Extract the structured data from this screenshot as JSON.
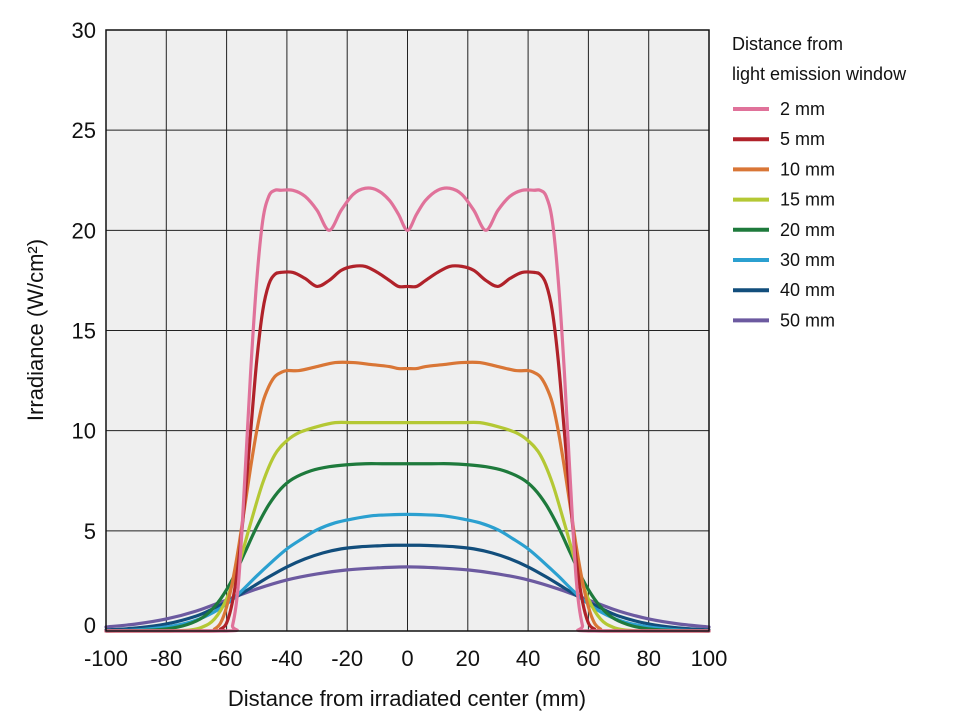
{
  "chart_data": {
    "type": "line",
    "xlabel": "Distance from irradiated center (mm)",
    "ylabel": "Irradiance (W/cm²)",
    "xlim": [
      -100,
      100
    ],
    "ylim": [
      0,
      30
    ],
    "x_ticks": [
      "-100",
      "-80",
      "-60",
      "-40",
      "-20",
      "0",
      "20",
      "40",
      "60",
      "80",
      "100"
    ],
    "y_ticks": [
      "0",
      "5",
      "10",
      "15",
      "20",
      "25",
      "30"
    ],
    "grid": true,
    "legend": {
      "title_line1": "Distance from",
      "title_line2": "light emission window",
      "placement": "right"
    },
    "series": [
      {
        "name": "2 mm",
        "color": "#e0729a",
        "x": [
          -100,
          -60,
          -58,
          -56,
          -54,
          -52,
          -50,
          -48,
          -46,
          -44,
          -42,
          -38,
          -34,
          -30,
          -26,
          -22,
          -18,
          -14,
          -10,
          -6,
          -3,
          0,
          3,
          6,
          10,
          14,
          18,
          22,
          26,
          30,
          34,
          38,
          42,
          44,
          46,
          48,
          50,
          52,
          54,
          56,
          58,
          60,
          100
        ],
        "y": [
          0,
          0,
          0.3,
          2.5,
          7.5,
          13,
          17.5,
          20.5,
          21.7,
          22.0,
          22.0,
          22.0,
          21.7,
          21.0,
          20.0,
          21.0,
          21.8,
          22.1,
          22.0,
          21.5,
          20.8,
          20.0,
          20.8,
          21.5,
          22.0,
          22.1,
          21.8,
          21.0,
          20.0,
          21.0,
          21.7,
          22.0,
          22.0,
          22.0,
          21.7,
          20.5,
          17.5,
          13,
          7.5,
          2.5,
          0.3,
          0,
          0
        ]
      },
      {
        "name": "5 mm",
        "color": "#b0222a",
        "x": [
          -100,
          -64,
          -62,
          -60,
          -58,
          -56,
          -54,
          -52,
          -50,
          -48,
          -46,
          -44,
          -42,
          -38,
          -34,
          -30,
          -26,
          -22,
          -18,
          -14,
          -10,
          -6,
          -3,
          0,
          3,
          6,
          10,
          14,
          18,
          22,
          26,
          30,
          34,
          38,
          42,
          44,
          46,
          48,
          50,
          52,
          54,
          56,
          58,
          60,
          62,
          64,
          100
        ],
        "y": [
          0,
          0,
          0.1,
          0.4,
          1.5,
          3.5,
          6.5,
          10,
          13.5,
          16,
          17.3,
          17.8,
          17.9,
          17.9,
          17.6,
          17.2,
          17.5,
          18.0,
          18.2,
          18.2,
          17.9,
          17.5,
          17.2,
          17.2,
          17.2,
          17.5,
          17.9,
          18.2,
          18.2,
          18.0,
          17.5,
          17.2,
          17.6,
          17.9,
          17.9,
          17.8,
          17.3,
          16,
          13.5,
          10,
          6.5,
          3.5,
          1.5,
          0.4,
          0.1,
          0,
          0
        ]
      },
      {
        "name": "10 mm",
        "color": "#d97636",
        "x": [
          -100,
          -66,
          -64,
          -62,
          -60,
          -58,
          -56,
          -54,
          -52,
          -50,
          -48,
          -46,
          -44,
          -42,
          -40,
          -36,
          -30,
          -24,
          -18,
          -12,
          -6,
          -3,
          0,
          3,
          6,
          12,
          18,
          24,
          30,
          36,
          40,
          42,
          44,
          46,
          48,
          50,
          52,
          54,
          56,
          58,
          60,
          62,
          64,
          66,
          100
        ],
        "y": [
          0,
          0,
          0.1,
          0.4,
          1.2,
          2.5,
          4.2,
          6.2,
          8.2,
          10,
          11.4,
          12.2,
          12.7,
          12.9,
          13.0,
          13.0,
          13.2,
          13.4,
          13.4,
          13.3,
          13.2,
          13.1,
          13.1,
          13.1,
          13.2,
          13.3,
          13.4,
          13.4,
          13.2,
          13.0,
          13.0,
          12.9,
          12.7,
          12.2,
          11.4,
          10,
          8.2,
          6.2,
          4.2,
          2.5,
          1.2,
          0.4,
          0.1,
          0,
          0
        ]
      },
      {
        "name": "15 mm",
        "color": "#b4c834",
        "x": [
          -100,
          -80,
          -72,
          -68,
          -64,
          -60,
          -56,
          -52,
          -48,
          -44,
          -40,
          -36,
          -30,
          -24,
          -18,
          -12,
          -6,
          0,
          6,
          12,
          18,
          24,
          30,
          36,
          40,
          44,
          48,
          52,
          56,
          60,
          64,
          68,
          72,
          80,
          100
        ],
        "y": [
          0,
          0,
          0.05,
          0.2,
          0.6,
          1.6,
          3.3,
          5.4,
          7.4,
          8.8,
          9.5,
          9.9,
          10.2,
          10.4,
          10.4,
          10.4,
          10.4,
          10.4,
          10.4,
          10.4,
          10.4,
          10.4,
          10.2,
          9.9,
          9.5,
          8.8,
          7.4,
          5.4,
          3.3,
          1.6,
          0.6,
          0.2,
          0.05,
          0,
          0
        ]
      },
      {
        "name": "20 mm",
        "color": "#1e7a3c",
        "x": [
          -100,
          -84,
          -76,
          -70,
          -66,
          -62,
          -58,
          -54,
          -50,
          -46,
          -42,
          -38,
          -32,
          -26,
          -20,
          -14,
          -8,
          0,
          8,
          14,
          20,
          26,
          32,
          38,
          42,
          46,
          50,
          54,
          58,
          62,
          66,
          70,
          76,
          84,
          100
        ],
        "y": [
          0,
          0.05,
          0.2,
          0.5,
          0.9,
          1.6,
          2.6,
          3.9,
          5.2,
          6.3,
          7.1,
          7.6,
          8.0,
          8.2,
          8.3,
          8.35,
          8.35,
          8.35,
          8.35,
          8.35,
          8.3,
          8.2,
          8.0,
          7.6,
          7.1,
          6.3,
          5.2,
          3.9,
          2.6,
          1.6,
          0.9,
          0.5,
          0.2,
          0.05,
          0
        ]
      },
      {
        "name": "30 mm",
        "color": "#2ba0d0",
        "x": [
          -100,
          -90,
          -80,
          -72,
          -66,
          -60,
          -55,
          -50,
          -45,
          -40,
          -35,
          -30,
          -24,
          -18,
          -12,
          -6,
          0,
          6,
          12,
          18,
          24,
          30,
          35,
          40,
          45,
          50,
          55,
          60,
          66,
          72,
          80,
          90,
          100
        ],
        "y": [
          0,
          0.05,
          0.2,
          0.45,
          0.8,
          1.35,
          2.0,
          2.75,
          3.45,
          4.1,
          4.6,
          5.05,
          5.4,
          5.6,
          5.75,
          5.8,
          5.82,
          5.8,
          5.75,
          5.6,
          5.4,
          5.05,
          4.6,
          4.1,
          3.45,
          2.75,
          2.0,
          1.35,
          0.8,
          0.45,
          0.2,
          0.05,
          0
        ]
      },
      {
        "name": "40 mm",
        "color": "#124e7c",
        "x": [
          -100,
          -90,
          -80,
          -70,
          -64,
          -58,
          -52,
          -46,
          -40,
          -34,
          -28,
          -22,
          -16,
          -10,
          -4,
          0,
          4,
          10,
          16,
          22,
          28,
          34,
          40,
          46,
          52,
          58,
          64,
          70,
          80,
          90,
          100
        ],
        "y": [
          0.05,
          0.15,
          0.35,
          0.75,
          1.15,
          1.6,
          2.15,
          2.7,
          3.2,
          3.6,
          3.9,
          4.1,
          4.2,
          4.25,
          4.28,
          4.28,
          4.28,
          4.25,
          4.2,
          4.1,
          3.9,
          3.6,
          3.2,
          2.7,
          2.15,
          1.6,
          1.15,
          0.75,
          0.35,
          0.15,
          0.05
        ]
      },
      {
        "name": "50 mm",
        "color": "#6c5aa0",
        "x": [
          -100,
          -90,
          -80,
          -70,
          -60,
          -50,
          -40,
          -30,
          -20,
          -10,
          0,
          10,
          20,
          30,
          40,
          50,
          60,
          70,
          80,
          90,
          100
        ],
        "y": [
          0.2,
          0.35,
          0.6,
          1.0,
          1.55,
          2.1,
          2.55,
          2.85,
          3.05,
          3.15,
          3.2,
          3.15,
          3.05,
          2.85,
          2.55,
          2.1,
          1.55,
          1.0,
          0.6,
          0.35,
          0.2
        ]
      }
    ]
  }
}
